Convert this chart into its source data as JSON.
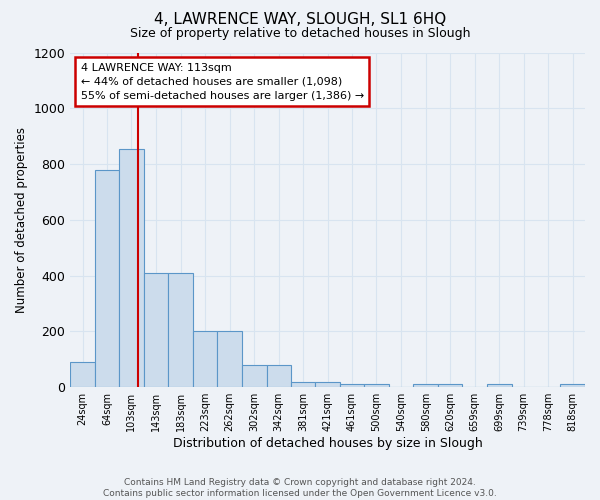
{
  "title": "4, LAWRENCE WAY, SLOUGH, SL1 6HQ",
  "subtitle": "Size of property relative to detached houses in Slough",
  "xlabel": "Distribution of detached houses by size in Slough",
  "ylabel": "Number of detached properties",
  "bin_labels": [
    "24sqm",
    "64sqm",
    "103sqm",
    "143sqm",
    "183sqm",
    "223sqm",
    "262sqm",
    "302sqm",
    "342sqm",
    "381sqm",
    "421sqm",
    "461sqm",
    "500sqm",
    "540sqm",
    "580sqm",
    "620sqm",
    "659sqm",
    "699sqm",
    "739sqm",
    "778sqm",
    "818sqm"
  ],
  "bin_edges": [
    4,
    44,
    83,
    123,
    163,
    203,
    242,
    282,
    322,
    361,
    401,
    441,
    480,
    520,
    560,
    600,
    639,
    679,
    719,
    758,
    798,
    838
  ],
  "bar_heights": [
    90,
    780,
    855,
    410,
    410,
    200,
    200,
    80,
    80,
    20,
    20,
    10,
    10,
    0,
    10,
    10,
    0,
    10,
    0,
    0,
    10
  ],
  "bar_color": "#ccdcec",
  "bar_edge_color": "#5b96c8",
  "vline_x": 113,
  "vline_color": "#cc0000",
  "annotation_text": "4 LAWRENCE WAY: 113sqm\n← 44% of detached houses are smaller (1,098)\n55% of semi-detached houses are larger (1,386) →",
  "annotation_box_color": "#ffffff",
  "annotation_box_edge": "#cc0000",
  "ylim": [
    0,
    1200
  ],
  "yticks": [
    0,
    200,
    400,
    600,
    800,
    1000,
    1200
  ],
  "bg_color": "#eef2f7",
  "grid_color": "#d8e4f0",
  "footer_text": "Contains HM Land Registry data © Crown copyright and database right 2024.\nContains public sector information licensed under the Open Government Licence v3.0."
}
